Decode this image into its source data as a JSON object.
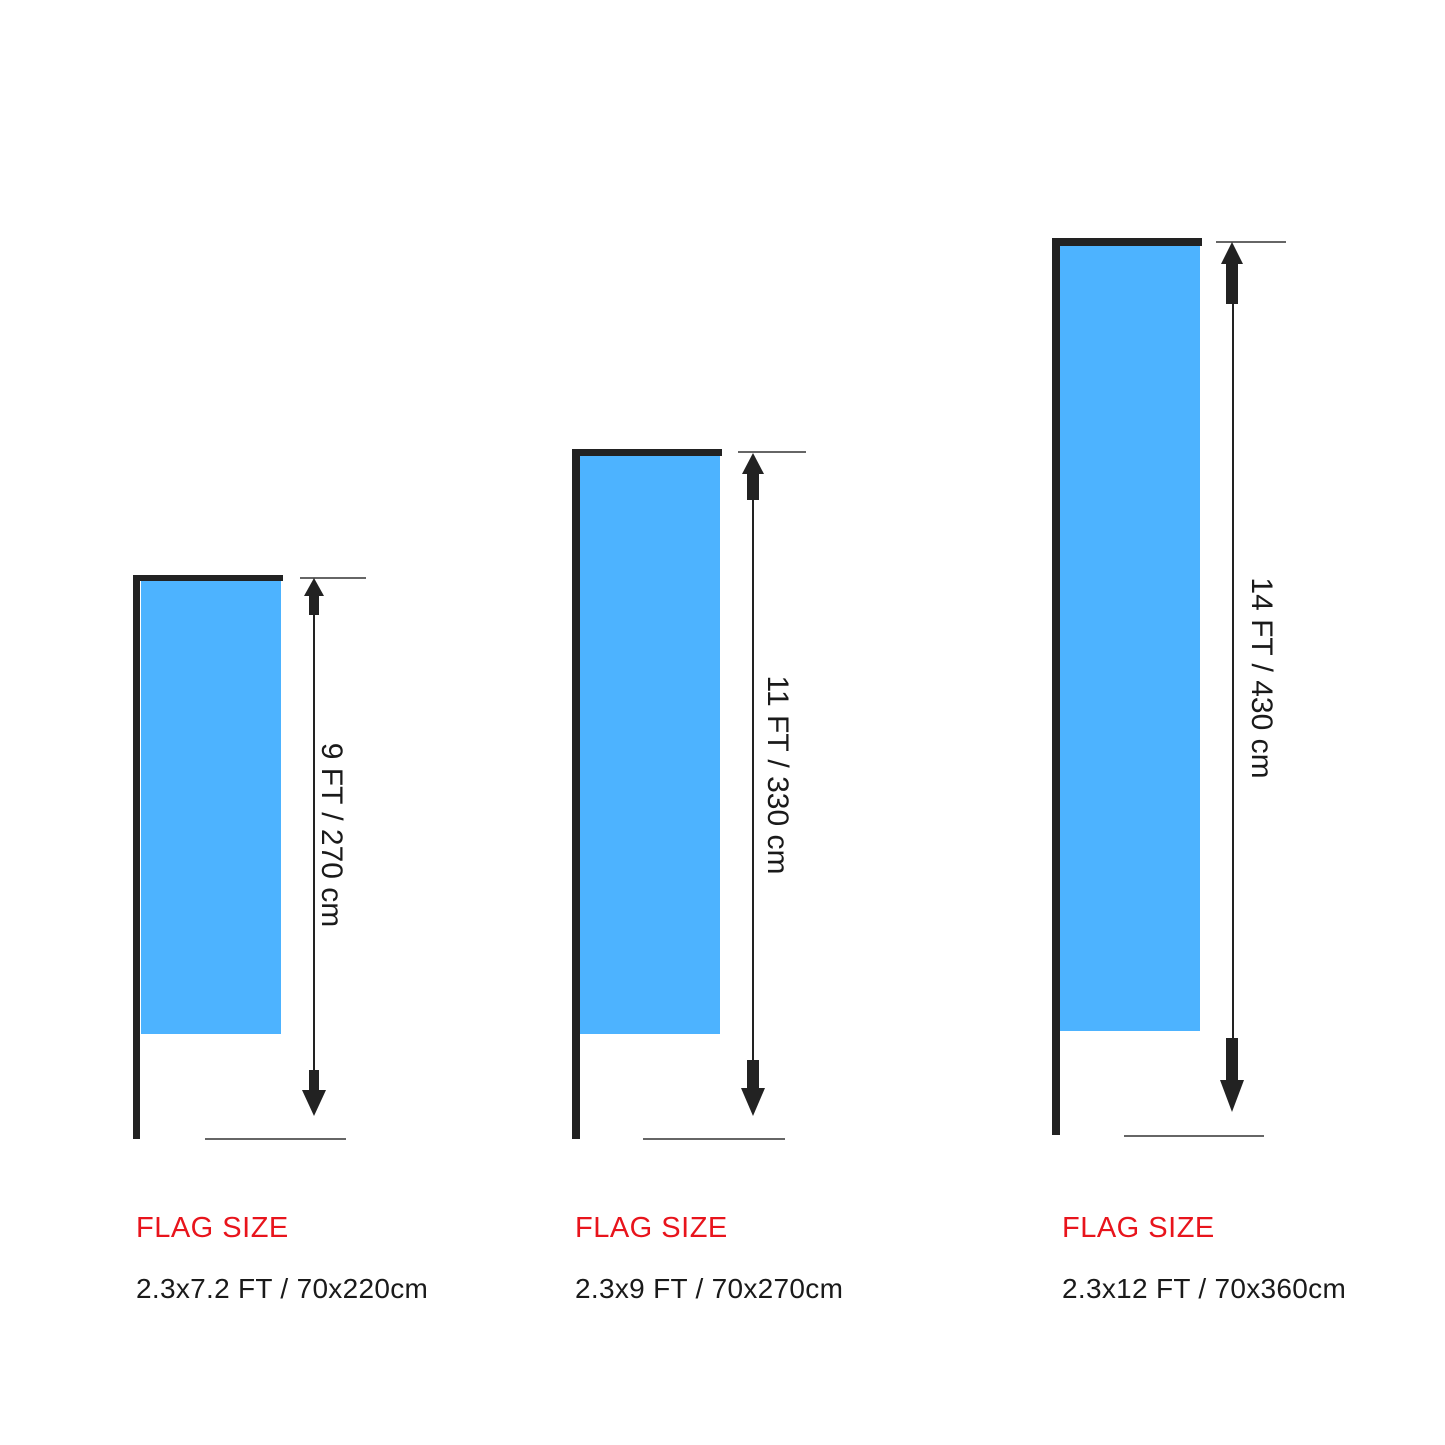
{
  "colors": {
    "flag": "#4db3ff",
    "pole": "#222222",
    "label": "#e8141c",
    "text": "#1a1a1a"
  },
  "flags": [
    {
      "height_label": "9 FT / 270 cm",
      "size_label": "FLAG SIZE",
      "size_value": "2.3x7.2 FT / 70x220cm"
    },
    {
      "height_label": "11 FT / 330 cm",
      "size_label": "FLAG SIZE",
      "size_value": "2.3x9 FT / 70x270cm"
    },
    {
      "height_label": "14 FT / 430 cm",
      "size_label": "FLAG SIZE",
      "size_value": "2.3x12 FT / 70x360cm"
    }
  ]
}
